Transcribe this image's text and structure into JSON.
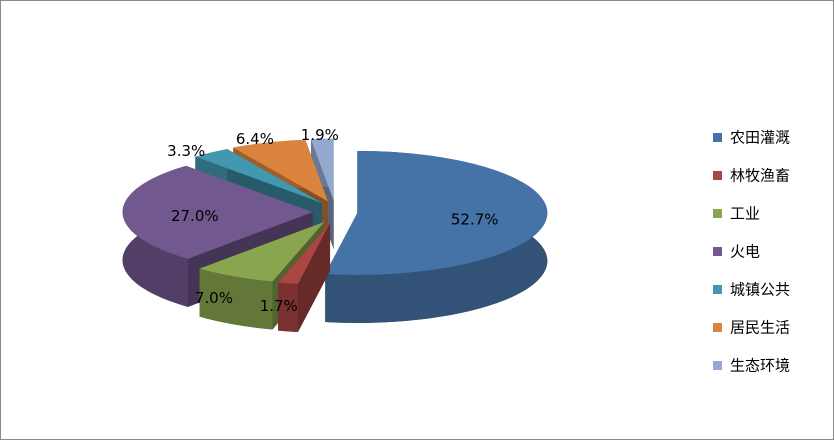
{
  "chart_data": {
    "type": "pie",
    "categories": [
      "农田灌溉",
      "林牧渔畜",
      "工业",
      "火电",
      "城镇公共",
      "居民生活",
      "生态环境"
    ],
    "values": [
      52.7,
      1.7,
      7.0,
      27.0,
      3.3,
      6.4,
      1.9
    ],
    "value_labels": [
      "52.7%",
      "1.7%",
      "7.0%",
      "27.0%",
      "3.3%",
      "6.4%",
      "1.9%"
    ],
    "colors": [
      "#4572a7",
      "#aa4643",
      "#89a54e",
      "#71588f",
      "#4198af",
      "#db843d",
      "#93a9cf"
    ],
    "legend": "right"
  }
}
